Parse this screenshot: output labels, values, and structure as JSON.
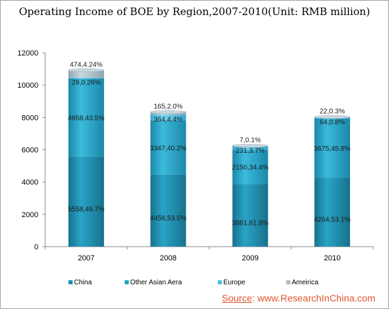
{
  "chart_data": {
    "type": "bar",
    "stacked": true,
    "title": "Operating Income of BOE by Region,2007-2010(Unit: RMB million)",
    "categories": [
      "2007",
      "2008",
      "2009",
      "2010"
    ],
    "ylim": [
      0,
      12000
    ],
    "yticks": [
      0,
      2000,
      4000,
      6000,
      8000,
      10000,
      12000
    ],
    "grid": false,
    "legend_position": "bottom",
    "series": [
      {
        "name": "China",
        "values": [
          5558,
          4458,
          3861,
          4264
        ],
        "labels": [
          "5558,49.7%",
          "4458,53.5%",
          "3861,61.8%",
          "4264,53.1%"
        ]
      },
      {
        "name": "Other Asian Aera",
        "values": [
          4858,
          3347,
          2150,
          3675
        ],
        "labels": [
          "4858,43.5%",
          "3347,40.2%",
          "2150,34.4%",
          "3675,45.8%"
        ]
      },
      {
        "name": "Europe",
        "values": [
          29,
          364,
          231,
          64
        ],
        "labels": [
          "29,0.26%",
          "364,4.4%",
          "231,3.7%",
          "64,0.8%"
        ]
      },
      {
        "name": "Ameirica",
        "values": [
          474,
          165,
          7,
          22
        ],
        "labels": [
          "474,4.24%",
          "165,2.0%",
          "7,0.1%",
          "22,0.3%"
        ]
      }
    ],
    "colors": [
      "#1f8fb0",
      "#23a6c9",
      "#4fc3e3",
      "#a9bdc8"
    ]
  },
  "source": {
    "prefix": "Source",
    "text": ": www.ResearchInChina.com"
  }
}
